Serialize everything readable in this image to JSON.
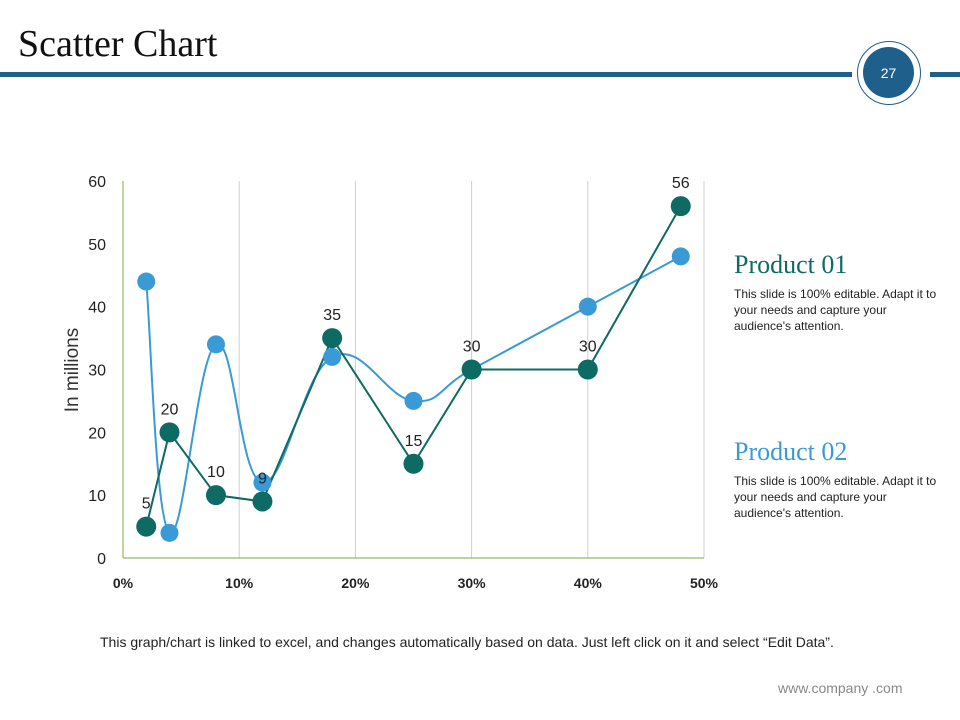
{
  "slide": {
    "title": "Scatter Chart",
    "page_number": "27",
    "accent_color": "#1f5f8b",
    "footnote": "This graph/chart is linked to excel, and changes automatically based on data. Just left click on it and select “Edit Data”.",
    "website": "www.company .com"
  },
  "legend": [
    {
      "title": "Product 01",
      "desc": "This slide is 100% editable. Adapt it to your needs and capture your audience's attention.",
      "color": "#0e6b64"
    },
    {
      "title": "Product 02",
      "desc": "This slide is 100% editable. Adapt it to your needs and capture your audience's attention.",
      "color": "#3a9ad6"
    }
  ],
  "chart_data": {
    "type": "scatter",
    "title": "",
    "xlabel": "",
    "ylabel": "In millions",
    "xlim": [
      0,
      50
    ],
    "ylim": [
      0,
      60
    ],
    "x_ticks": [
      0,
      10,
      20,
      30,
      40,
      50
    ],
    "x_tick_labels": [
      "0%",
      "10%",
      "20%",
      "30%",
      "40%",
      "50%"
    ],
    "y_ticks": [
      0,
      10,
      20,
      30,
      40,
      50,
      60
    ],
    "y_tick_labels": [
      "0",
      "10",
      "20",
      "30",
      "40",
      "50",
      "60"
    ],
    "grid": "vertical",
    "series": [
      {
        "name": "Product 01",
        "color": "#0e6b64",
        "smooth": false,
        "show_labels": true,
        "points": [
          [
            2,
            5
          ],
          [
            4,
            20
          ],
          [
            8,
            10
          ],
          [
            12,
            9
          ],
          [
            18,
            35
          ],
          [
            25,
            15
          ],
          [
            30,
            30
          ],
          [
            40,
            30
          ],
          [
            48,
            56
          ]
        ],
        "labels": [
          "5",
          "20",
          "10",
          "9",
          "35",
          "15",
          "30",
          "30",
          "56"
        ]
      },
      {
        "name": "Product 02",
        "color": "#3a9ad6",
        "smooth": true,
        "show_labels": false,
        "points": [
          [
            2,
            44
          ],
          [
            4,
            4
          ],
          [
            8,
            34
          ],
          [
            12,
            12
          ],
          [
            18,
            32
          ],
          [
            25,
            25
          ],
          [
            30,
            30
          ],
          [
            40,
            40
          ],
          [
            48,
            48
          ]
        ]
      }
    ]
  }
}
